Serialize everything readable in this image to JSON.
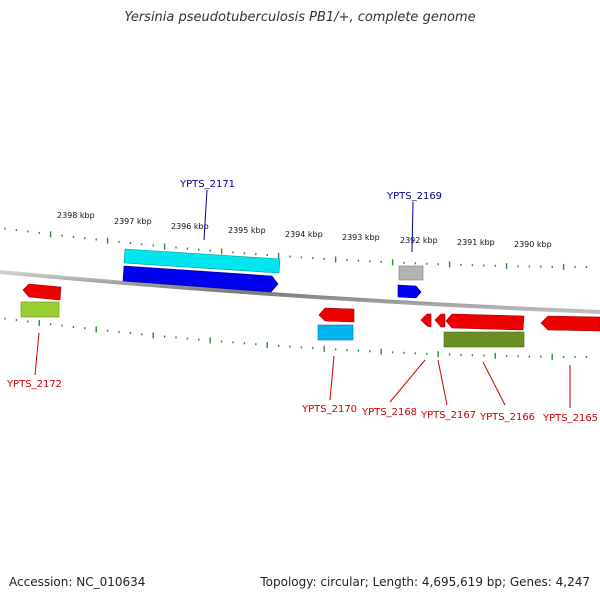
{
  "title": "Yersinia pseudotuberculosis PB1/+, complete genome",
  "footer": {
    "accession": "Accession: NC_010634",
    "topology": "Topology: circular; Length: 4,695,619 bp; Genes: 4,247"
  },
  "colors": {
    "backbone": "#8a8a8a",
    "tick": "#2e8b2e",
    "forward_label": "#00008b",
    "reverse_label": "#cc0000",
    "red": "#ee0000",
    "blue": "#0000ee",
    "cyan": "#00e5ee",
    "sky": "#00b2ee",
    "grey": "#b3b3b3",
    "lime": "#9acd32",
    "olive": "#6b8e23"
  },
  "kbp_labels": [
    "2398 kbp",
    "2397 kbp",
    "2396 kbp",
    "2395 kbp",
    "2394 kbp",
    "2393 kbp",
    "2392 kbp",
    "2391 kbp",
    "2390 kbp"
  ],
  "gene_labels": {
    "forward": [
      "YPTS_2171",
      "YPTS_2169"
    ],
    "reverse": [
      "YPTS_2172",
      "YPTS_2170",
      "YPTS_2168",
      "YPTS_2167",
      "YPTS_2166",
      "YPTS_2165"
    ]
  },
  "features": [
    {
      "type": "cds",
      "strand": "forward",
      "color": "cyan"
    },
    {
      "type": "gene",
      "strand": "forward",
      "color": "blue"
    },
    {
      "type": "cds",
      "strand": "forward",
      "color": "grey"
    },
    {
      "type": "gene",
      "strand": "forward",
      "color": "blue"
    },
    {
      "type": "gene",
      "strand": "reverse",
      "color": "red"
    },
    {
      "type": "cds",
      "strand": "reverse",
      "color": "lime"
    },
    {
      "type": "gene",
      "strand": "reverse",
      "color": "red"
    },
    {
      "type": "cds",
      "strand": "reverse",
      "color": "sky"
    },
    {
      "type": "gene",
      "strand": "reverse",
      "color": "red"
    },
    {
      "type": "gene",
      "strand": "reverse",
      "color": "red"
    },
    {
      "type": "gene",
      "strand": "reverse",
      "color": "red"
    },
    {
      "type": "cds",
      "strand": "reverse",
      "color": "olive"
    },
    {
      "type": "gene",
      "strand": "reverse",
      "color": "red"
    }
  ]
}
